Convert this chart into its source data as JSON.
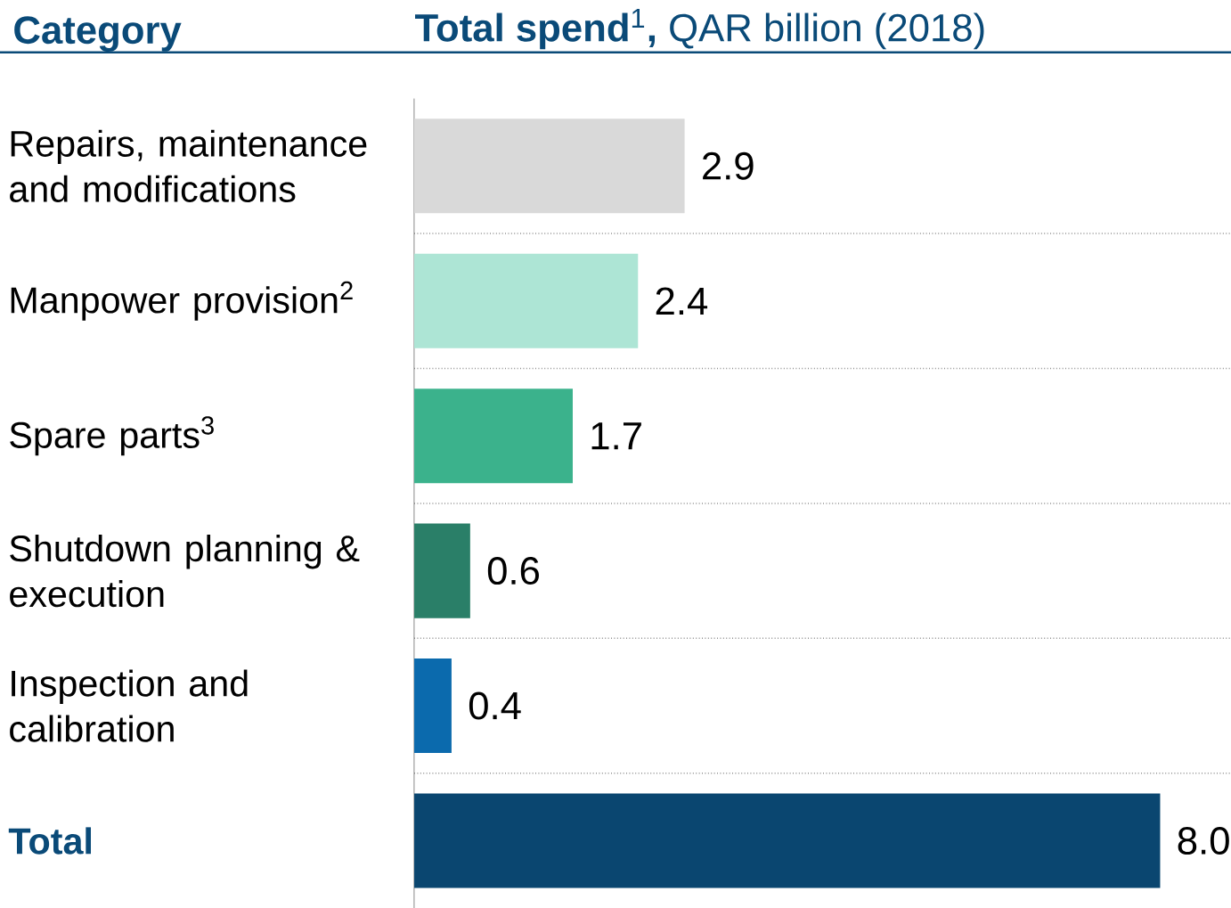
{
  "chart_data": {
    "type": "bar",
    "orientation": "horizontal",
    "title": "**Total spend**$^{1}$**,** QAR billion (2018)",
    "ylabel": "Category",
    "categories": [
      "Repairs, maintenance and modifications",
      "Manpower provision$^{2}$",
      "Spare parts$^{3}$",
      "Shutdown planning & execution",
      "Inspection and calibration",
      "Total"
    ],
    "values": [
      2.9,
      2.4,
      1.7,
      0.6,
      0.4,
      8.0
    ],
    "colors": [
      "#d9d9d9",
      "#ade5d5",
      "#3bb28c",
      "#2a7f68",
      "#0b6aad",
      "#0a4670"
    ],
    "value_labels": [
      "2.9",
      "2.4",
      "1.7",
      "0.6",
      "0.4",
      "8.0"
    ],
    "grid": "y"
  }
}
